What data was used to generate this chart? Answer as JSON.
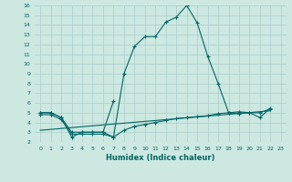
{
  "xlabel": "Humidex (Indice chaleur)",
  "xlim": [
    -0.5,
    23.5
  ],
  "ylim": [
    2,
    16
  ],
  "xticks": [
    0,
    1,
    2,
    3,
    4,
    5,
    6,
    7,
    8,
    9,
    10,
    11,
    12,
    13,
    14,
    15,
    16,
    17,
    18,
    19,
    20,
    21,
    22,
    23
  ],
  "yticks": [
    2,
    3,
    4,
    5,
    6,
    7,
    8,
    9,
    10,
    11,
    12,
    13,
    14,
    15,
    16
  ],
  "bg_color": "#cce8e0",
  "grid_color": "#aacccc",
  "line_color": "#006666",
  "line1_x": [
    0,
    1,
    2,
    3,
    4,
    5,
    6,
    7,
    8,
    9,
    10,
    11,
    12,
    13,
    14,
    15,
    16,
    17,
    18,
    19,
    20,
    21,
    22
  ],
  "line1_y": [
    5,
    5,
    4.5,
    2.5,
    3,
    3,
    3,
    2.5,
    9.0,
    11.8,
    12.8,
    12.8,
    14.3,
    14.8,
    16.0,
    14.2,
    10.8,
    8.0,
    5.0,
    5.1,
    5.0,
    4.5,
    5.5
  ],
  "line2_x": [
    0,
    1,
    2,
    3,
    4,
    5,
    6,
    7
  ],
  "line2_y": [
    5,
    5,
    4.5,
    3,
    3,
    3,
    3,
    6.2
  ],
  "line3_x": [
    0,
    1,
    2,
    3,
    4,
    5,
    6,
    7,
    8,
    9,
    10,
    11,
    12,
    13,
    14,
    15,
    16,
    17,
    18,
    19,
    20,
    21,
    22
  ],
  "line3_y": [
    4.8,
    4.8,
    4.3,
    2.8,
    2.8,
    2.8,
    2.8,
    2.5,
    3.2,
    3.6,
    3.8,
    4.0,
    4.2,
    4.4,
    4.5,
    4.6,
    4.7,
    4.9,
    5.0,
    4.9,
    5.0,
    5.0,
    5.4
  ],
  "line4_x": [
    0,
    22
  ],
  "line4_y": [
    3.2,
    5.2
  ]
}
